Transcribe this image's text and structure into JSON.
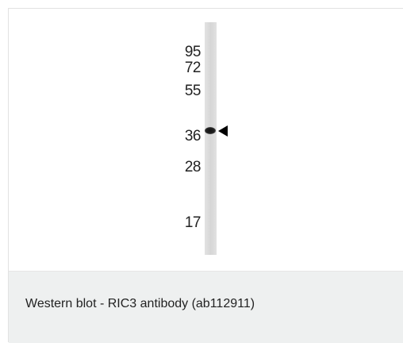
{
  "figure": {
    "markers": [
      {
        "label": "95"
      },
      {
        "label": "72"
      },
      {
        "label": "55"
      },
      {
        "label": "36"
      },
      {
        "label": "28"
      },
      {
        "label": "17"
      }
    ],
    "caption": "Western blot - RIC3 antibody (ab112911)"
  }
}
